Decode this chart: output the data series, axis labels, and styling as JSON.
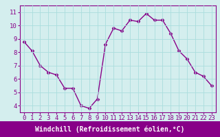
{
  "x": [
    0,
    1,
    2,
    3,
    4,
    5,
    6,
    7,
    8,
    9,
    10,
    11,
    12,
    13,
    14,
    15,
    16,
    17,
    18,
    19,
    20,
    21,
    22,
    23
  ],
  "y": [
    8.8,
    8.1,
    7.0,
    6.5,
    6.3,
    5.3,
    5.3,
    4.0,
    3.8,
    4.5,
    8.6,
    9.8,
    9.6,
    10.4,
    10.3,
    10.9,
    10.4,
    10.4,
    9.4,
    8.1,
    7.5,
    6.5,
    6.2,
    5.5
  ],
  "line_color": "#880088",
  "marker": "D",
  "marker_size": 2.5,
  "bg_color": "#d4eeee",
  "grid_color": "#aadddd",
  "xlabel": "Windchill (Refroidissement éolien,°C)",
  "xlabel_bg": "#880088",
  "xlabel_color": "#ffffff",
  "ylim": [
    3.5,
    11.5
  ],
  "xlim": [
    -0.5,
    23.5
  ],
  "yticks": [
    4,
    5,
    6,
    7,
    8,
    9,
    10,
    11
  ],
  "xticks": [
    0,
    1,
    2,
    3,
    4,
    5,
    6,
    7,
    8,
    9,
    10,
    11,
    12,
    13,
    14,
    15,
    16,
    17,
    18,
    19,
    20,
    21,
    22,
    23
  ],
  "tick_color": "#880088",
  "spine_color": "#880088",
  "font_size_ticks": 6.5,
  "font_size_xlabel": 7.0,
  "linewidth": 1.0
}
